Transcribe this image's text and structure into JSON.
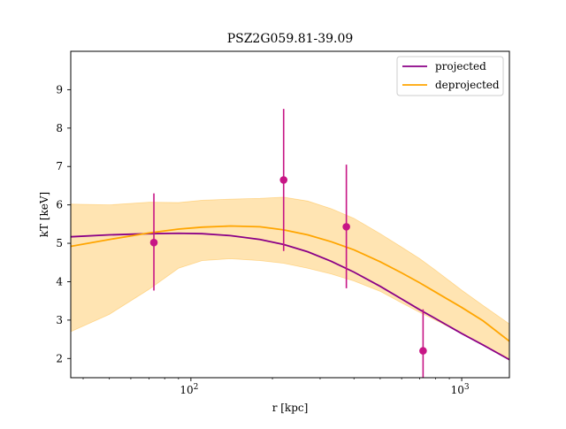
{
  "chart_data": {
    "type": "line",
    "title": "PSZ2G059.81-39.09",
    "xlabel": "r [kpc]",
    "ylabel": "kT [keV]",
    "xscale": "log",
    "xlim": [
      36,
      1500
    ],
    "ylim": [
      1.5,
      10
    ],
    "grid": false,
    "legend_position": "top-right",
    "x_ticks": [
      {
        "value": 100,
        "label_base": "10",
        "label_exp": "2"
      },
      {
        "value": 1000,
        "label_base": "10",
        "label_exp": "3"
      }
    ],
    "y_ticks": [
      2,
      3,
      4,
      5,
      6,
      7,
      8,
      9
    ],
    "series": [
      {
        "name": "projected",
        "color": "#8b0087",
        "x": [
          36,
          50,
          70,
          90,
          110,
          140,
          180,
          220,
          270,
          330,
          400,
          500,
          600,
          700,
          800,
          1000,
          1200,
          1500
        ],
        "y": [
          5.17,
          5.22,
          5.25,
          5.26,
          5.25,
          5.2,
          5.1,
          4.97,
          4.78,
          4.53,
          4.25,
          3.88,
          3.55,
          3.27,
          3.04,
          2.65,
          2.35,
          1.97
        ]
      },
      {
        "name": "deprojected",
        "color": "#ffa500",
        "x": [
          36,
          50,
          70,
          90,
          110,
          140,
          180,
          220,
          270,
          330,
          400,
          500,
          600,
          700,
          800,
          1000,
          1200,
          1500
        ],
        "y": [
          4.92,
          5.1,
          5.27,
          5.37,
          5.42,
          5.45,
          5.43,
          5.35,
          5.22,
          5.04,
          4.83,
          4.52,
          4.23,
          3.97,
          3.73,
          3.33,
          2.98,
          2.45
        ],
        "band_lower": [
          2.7,
          3.15,
          3.8,
          4.35,
          4.55,
          4.6,
          4.55,
          4.48,
          4.35,
          4.2,
          4.02,
          3.75,
          3.45,
          3.2,
          3.0,
          2.65,
          2.35,
          2.0
        ],
        "band_upper": [
          6.02,
          6.0,
          6.07,
          6.06,
          6.12,
          6.15,
          6.17,
          6.2,
          6.1,
          5.9,
          5.65,
          5.25,
          4.9,
          4.6,
          4.3,
          3.78,
          3.38,
          2.9
        ]
      }
    ],
    "data_points": {
      "color": "#c71585",
      "points": [
        {
          "x": 73,
          "y": 5.02,
          "yerr_low": 3.77,
          "yerr_high": 6.3
        },
        {
          "x": 220,
          "y": 6.65,
          "yerr_low": 4.8,
          "yerr_high": 8.5
        },
        {
          "x": 375,
          "y": 5.43,
          "yerr_low": 3.83,
          "yerr_high": 7.05
        },
        {
          "x": 720,
          "y": 2.2,
          "yerr_low": 1.5,
          "yerr_high": 3.28
        }
      ]
    }
  }
}
